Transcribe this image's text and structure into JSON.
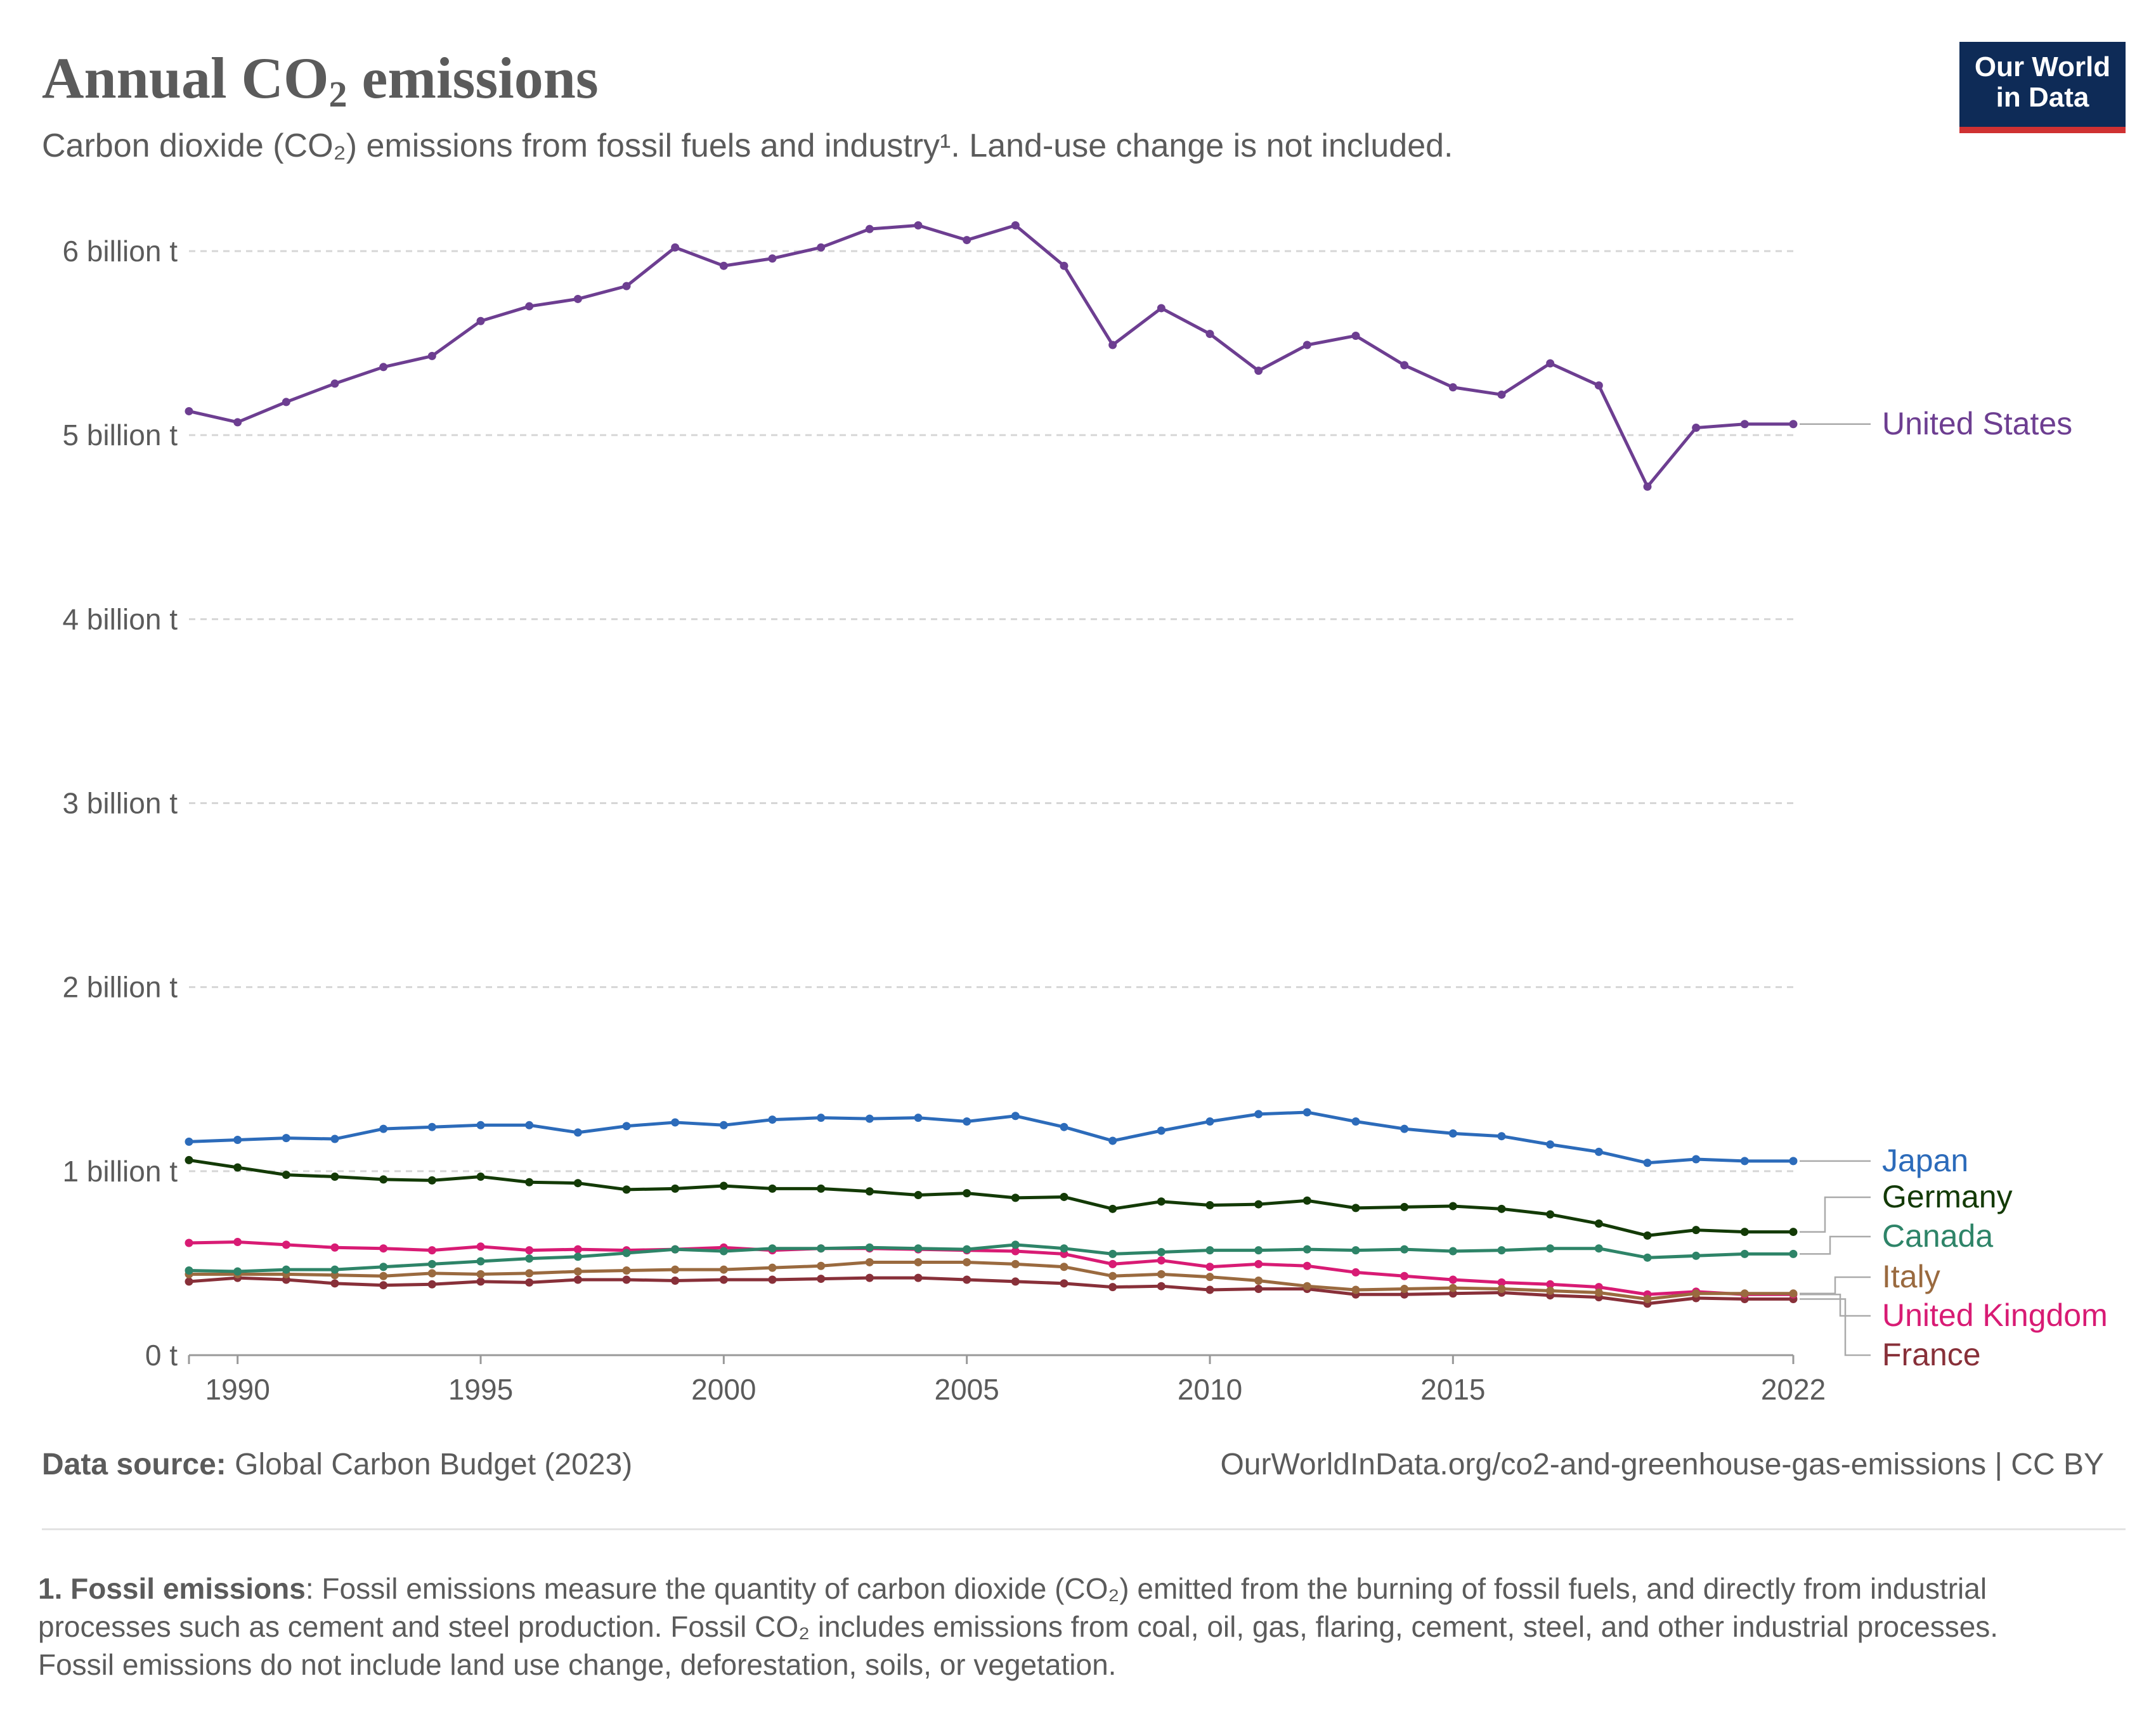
{
  "header": {
    "title_main": "Annual CO",
    "title_sub": "2",
    "title_end": " emissions",
    "subtitle": "Carbon dioxide (CO₂) emissions from fossil fuels and industry¹. Land-use change is not included."
  },
  "logo": {
    "line1": "Our World",
    "line2": "in Data",
    "bg_color": "#0e2b57",
    "accent_color": "#cf3132"
  },
  "chart_data": {
    "type": "line",
    "x": [
      1989,
      1990,
      1991,
      1992,
      1993,
      1994,
      1995,
      1996,
      1997,
      1998,
      1999,
      2000,
      2001,
      2002,
      2003,
      2004,
      2005,
      2006,
      2007,
      2008,
      2009,
      2010,
      2011,
      2012,
      2013,
      2014,
      2015,
      2016,
      2017,
      2018,
      2019,
      2020,
      2021,
      2022
    ],
    "xlim": [
      1989,
      2022
    ],
    "x_ticks": [
      {
        "value": 1990,
        "label": "1990"
      },
      {
        "value": 1995,
        "label": "1995"
      },
      {
        "value": 2000,
        "label": "2000"
      },
      {
        "value": 2005,
        "label": "2005"
      },
      {
        "value": 2010,
        "label": "2010"
      },
      {
        "value": 2015,
        "label": "2015"
      },
      {
        "value": 2022,
        "label": "2022"
      }
    ],
    "ylim": [
      0,
      6
    ],
    "y_ticks": [
      {
        "value": 0,
        "label": "0 t"
      },
      {
        "value": 1,
        "label": "1 billion t"
      },
      {
        "value": 2,
        "label": "2 billion t"
      },
      {
        "value": 3,
        "label": "3 billion t"
      },
      {
        "value": 4,
        "label": "4 billion t"
      },
      {
        "value": 5,
        "label": "5 billion t"
      },
      {
        "value": 6,
        "label": "6 billion t"
      }
    ],
    "grid": "horizontal-dashed",
    "legend": "right-end-labels",
    "series": [
      {
        "name": "United States",
        "color": "#6d3e91",
        "values": [
          5.13,
          5.07,
          5.18,
          5.28,
          5.37,
          5.43,
          5.62,
          5.7,
          5.74,
          5.81,
          6.02,
          5.92,
          5.96,
          6.02,
          6.12,
          6.14,
          6.06,
          6.14,
          5.92,
          5.49,
          5.69,
          5.55,
          5.35,
          5.49,
          5.54,
          5.38,
          5.26,
          5.22,
          5.39,
          5.27,
          4.72,
          5.04,
          5.06,
          5.06
        ]
      },
      {
        "name": "Japan",
        "color": "#2c6bba",
        "values": [
          1.16,
          1.17,
          1.18,
          1.175,
          1.23,
          1.24,
          1.25,
          1.25,
          1.21,
          1.245,
          1.265,
          1.25,
          1.28,
          1.29,
          1.285,
          1.29,
          1.27,
          1.3,
          1.24,
          1.165,
          1.22,
          1.27,
          1.31,
          1.32,
          1.27,
          1.23,
          1.205,
          1.19,
          1.145,
          1.105,
          1.045,
          1.065,
          1.055,
          1.055
        ]
      },
      {
        "name": "Germany",
        "color": "#133a06",
        "values": [
          1.06,
          1.02,
          0.98,
          0.97,
          0.955,
          0.95,
          0.97,
          0.94,
          0.935,
          0.9,
          0.905,
          0.92,
          0.905,
          0.905,
          0.89,
          0.87,
          0.88,
          0.855,
          0.86,
          0.795,
          0.835,
          0.815,
          0.82,
          0.84,
          0.8,
          0.805,
          0.81,
          0.795,
          0.765,
          0.715,
          0.65,
          0.68,
          0.67,
          0.67
        ]
      },
      {
        "name": "Canada",
        "color": "#2e8468",
        "values": [
          0.46,
          0.455,
          0.465,
          0.465,
          0.48,
          0.495,
          0.51,
          0.525,
          0.535,
          0.555,
          0.575,
          0.565,
          0.58,
          0.58,
          0.585,
          0.58,
          0.575,
          0.6,
          0.58,
          0.55,
          0.56,
          0.57,
          0.57,
          0.575,
          0.57,
          0.575,
          0.565,
          0.57,
          0.58,
          0.58,
          0.53,
          0.54,
          0.55,
          0.55
        ]
      },
      {
        "name": "Italy",
        "color": "#9a6a3f",
        "values": [
          0.44,
          0.44,
          0.44,
          0.435,
          0.43,
          0.445,
          0.44,
          0.445,
          0.455,
          0.46,
          0.465,
          0.465,
          0.475,
          0.485,
          0.505,
          0.505,
          0.505,
          0.495,
          0.48,
          0.43,
          0.44,
          0.425,
          0.405,
          0.375,
          0.355,
          0.36,
          0.365,
          0.36,
          0.35,
          0.34,
          0.305,
          0.335,
          0.335,
          0.335
        ]
      },
      {
        "name": "United Kingdom",
        "color": "#d81b74",
        "values": [
          0.61,
          0.615,
          0.6,
          0.585,
          0.58,
          0.57,
          0.59,
          0.57,
          0.575,
          0.57,
          0.575,
          0.585,
          0.57,
          0.58,
          0.58,
          0.575,
          0.57,
          0.565,
          0.55,
          0.495,
          0.515,
          0.48,
          0.495,
          0.485,
          0.45,
          0.43,
          0.41,
          0.395,
          0.385,
          0.37,
          0.33,
          0.345,
          0.33,
          0.33
        ]
      },
      {
        "name": "France",
        "color": "#883039",
        "values": [
          0.4,
          0.42,
          0.41,
          0.39,
          0.38,
          0.385,
          0.4,
          0.395,
          0.41,
          0.41,
          0.405,
          0.41,
          0.41,
          0.415,
          0.42,
          0.42,
          0.41,
          0.4,
          0.39,
          0.37,
          0.375,
          0.355,
          0.36,
          0.36,
          0.33,
          0.33,
          0.335,
          0.34,
          0.325,
          0.315,
          0.28,
          0.31,
          0.305,
          0.305
        ]
      }
    ]
  },
  "footer": {
    "source_label": "Data source:",
    "source_value": " Global Carbon Budget (2023)",
    "url": "OurWorldInData.org/co2-and-greenhouse-gas-emissions | CC BY",
    "footnote_label": "1. Fossil emissions",
    "footnote_text": ": Fossil emissions measure the quantity of carbon dioxide (CO₂) emitted from the burning of fossil fuels, and directly from industrial processes such as cement and steel production. Fossil CO₂ includes emissions from coal, oil, gas, flaring, cement, steel, and other industrial processes. Fossil emissions do not include land use change, deforestation, soils, or vegetation."
  }
}
